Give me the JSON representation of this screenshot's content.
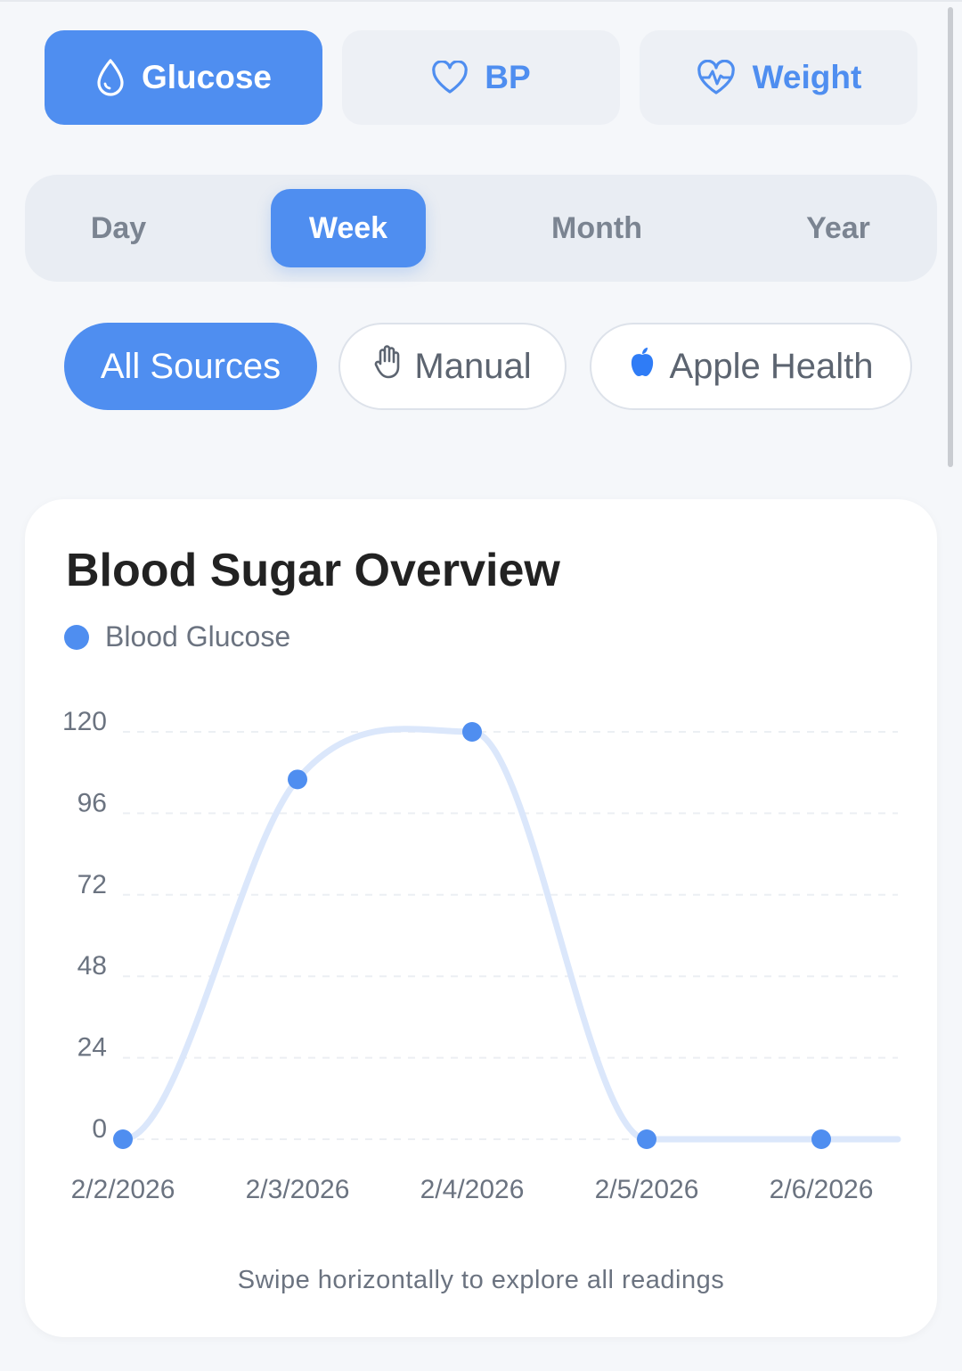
{
  "metric_tabs": [
    {
      "label": "Glucose",
      "icon": "drop-icon",
      "active": true
    },
    {
      "label": "BP",
      "icon": "heart-icon",
      "active": false
    },
    {
      "label": "Weight",
      "icon": "heart-pulse-icon",
      "active": false
    }
  ],
  "range_options": [
    {
      "label": "Day",
      "active": false
    },
    {
      "label": "Week",
      "active": true
    },
    {
      "label": "Month",
      "active": false
    },
    {
      "label": "Year",
      "active": false
    }
  ],
  "sources": [
    {
      "label": "All Sources",
      "icon": "",
      "active": true
    },
    {
      "label": "Manual",
      "icon": "hand-icon",
      "active": false
    },
    {
      "label": "Apple Health",
      "icon": "apple-icon",
      "active": false
    }
  ],
  "card": {
    "title": "Blood Sugar Overview",
    "swipe_hint": "Swipe horizontally to explore all readings"
  },
  "colors": {
    "accent": "#4f8ef0",
    "line": "#dbe7fb",
    "grid": "#eceff3"
  },
  "chart_data": {
    "type": "line",
    "title": "Blood Sugar Overview",
    "series": [
      {
        "name": "Blood Glucose",
        "values": [
          0,
          106,
          120,
          0,
          0
        ]
      }
    ],
    "x": [
      "2/2/2026",
      "2/3/2026",
      "2/4/2026",
      "2/5/2026",
      "2/6/2026"
    ],
    "y_ticks": [
      "120",
      "96",
      "72",
      "48",
      "24",
      "0"
    ],
    "ylim": [
      0,
      120
    ],
    "grid": true,
    "legend_position": "top-left",
    "smooth": true
  }
}
